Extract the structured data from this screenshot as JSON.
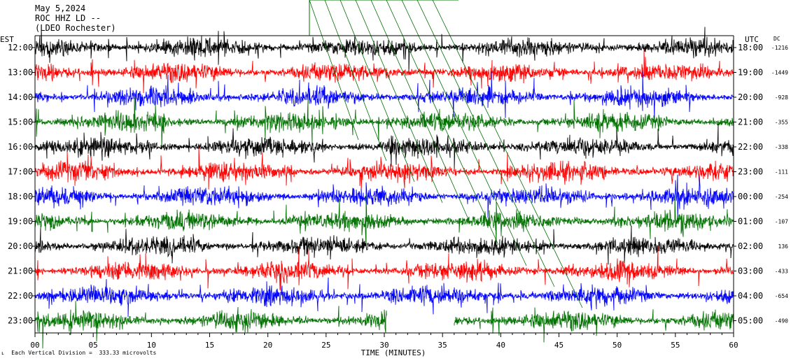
{
  "header": {
    "date": "May 5,2024",
    "station": "ROC HHZ LD --",
    "location": "(LDEO Rochester)"
  },
  "footer": {
    "mark": "ʟ",
    "scale_note": "Each Vertical Division =  333.33 microvolts"
  },
  "colors": {
    "black": "#000000",
    "red": "#ff0000",
    "blue": "#0000ff",
    "green": "#007000",
    "grid": "#000000"
  },
  "chart_data": {
    "type": "line",
    "title": "",
    "xlabel": "TIME (MINUTES)",
    "xlim": [
      0,
      60
    ],
    "xticks": [
      "00",
      "05",
      "10",
      "15",
      "20",
      "25",
      "30",
      "35",
      "40",
      "45",
      "50",
      "55",
      "60"
    ],
    "left_axis_label": "EST",
    "right_axis_label": "UTC",
    "dc_label": "DC",
    "rows": [
      {
        "est": "12:00",
        "utc": "18:00",
        "dc": "-1216",
        "color": "black"
      },
      {
        "est": "13:00",
        "utc": "19:00",
        "dc": "-1449",
        "color": "red"
      },
      {
        "est": "14:00",
        "utc": "20:00",
        "dc": "-928",
        "color": "blue"
      },
      {
        "est": "15:00",
        "utc": "21:00",
        "dc": "-355",
        "color": "green"
      },
      {
        "est": "16:00",
        "utc": "22:00",
        "dc": "-338",
        "color": "black"
      },
      {
        "est": "17:00",
        "utc": "23:00",
        "dc": "-111",
        "color": "red"
      },
      {
        "est": "18:00",
        "utc": "00:00",
        "dc": "-254",
        "color": "blue"
      },
      {
        "est": "19:00",
        "utc": "01:00",
        "dc": "-107",
        "color": "green"
      },
      {
        "est": "20:00",
        "utc": "02:00",
        "dc": "136",
        "color": "black"
      },
      {
        "est": "21:00",
        "utc": "03:00",
        "dc": "-433",
        "color": "red"
      },
      {
        "est": "22:00",
        "utc": "04:00",
        "dc": "-654",
        "color": "blue"
      },
      {
        "est": "23:00",
        "utc": "05:00",
        "dc": "-490",
        "color": "green"
      }
    ],
    "gap_last_row_minutes": [
      30.2,
      36.0
    ],
    "grid": false
  }
}
